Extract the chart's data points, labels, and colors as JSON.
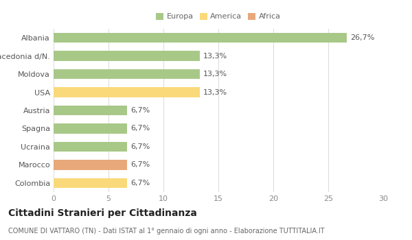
{
  "categories": [
    "Albania",
    "Macedonia d/N.",
    "Moldova",
    "USA",
    "Austria",
    "Spagna",
    "Ucraina",
    "Marocco",
    "Colombia"
  ],
  "values": [
    26.7,
    13.3,
    13.3,
    13.3,
    6.7,
    6.7,
    6.7,
    6.7,
    6.7
  ],
  "labels": [
    "26,7%",
    "13,3%",
    "13,3%",
    "13,3%",
    "6,7%",
    "6,7%",
    "6,7%",
    "6,7%",
    "6,7%"
  ],
  "colors": [
    "#a8c888",
    "#a8c888",
    "#a8c888",
    "#f9d97a",
    "#a8c888",
    "#a8c888",
    "#a8c888",
    "#e8a87a",
    "#f9d97a"
  ],
  "legend": [
    {
      "label": "Europa",
      "color": "#a8c888"
    },
    {
      "label": "America",
      "color": "#f9d97a"
    },
    {
      "label": "Africa",
      "color": "#e8a87a"
    }
  ],
  "xlim": [
    0,
    30
  ],
  "xticks": [
    0,
    5,
    10,
    15,
    20,
    25,
    30
  ],
  "title": "Cittadini Stranieri per Cittadinanza",
  "subtitle": "COMUNE DI VATTARO (TN) - Dati ISTAT al 1° gennaio di ogni anno - Elaborazione TUTTITALIA.IT",
  "background_color": "#ffffff",
  "grid_color": "#dddddd",
  "bar_height": 0.55,
  "label_fontsize": 8,
  "tick_fontsize": 8,
  "title_fontsize": 10,
  "subtitle_fontsize": 7
}
